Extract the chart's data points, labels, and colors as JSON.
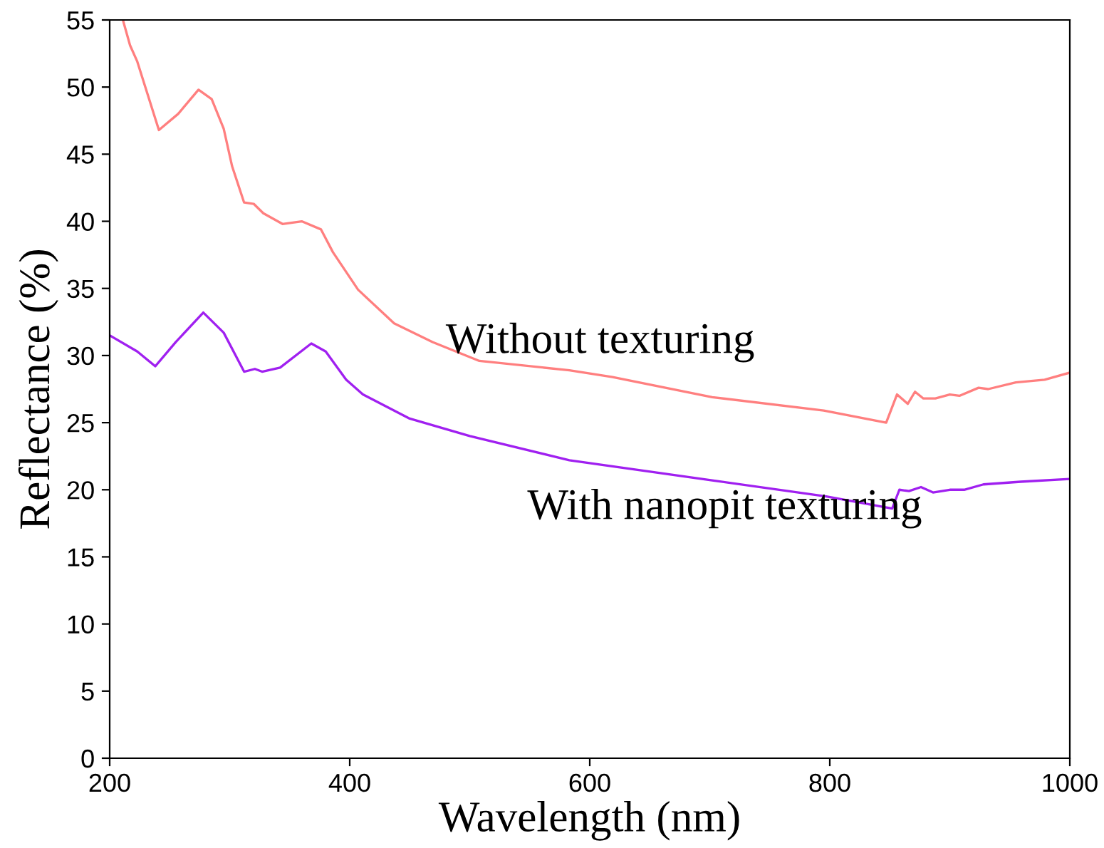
{
  "chart_data": {
    "type": "line",
    "xlabel": "Wavelength (nm)",
    "ylabel": "Reflectance (%)",
    "xlim": [
      200,
      1000
    ],
    "ylim": [
      0,
      55
    ],
    "xticks": [
      200,
      400,
      600,
      800,
      1000
    ],
    "yticks": [
      0,
      5,
      10,
      15,
      20,
      25,
      30,
      35,
      40,
      45,
      50,
      55
    ],
    "grid": false,
    "legend": false,
    "series": [
      {
        "color": "#ff7f7f",
        "x": [
          211,
          217,
          223,
          241,
          257,
          274,
          285,
          295,
          302,
          312,
          320,
          328,
          344,
          360,
          376,
          386,
          407,
          437,
          469,
          508,
          583,
          619,
          702,
          795,
          847,
          856,
          865,
          871,
          878,
          888,
          900,
          908,
          924,
          932,
          955,
          979,
          999
        ],
        "values": [
          55.0,
          53.1,
          51.9,
          46.8,
          48.0,
          49.8,
          49.1,
          46.9,
          44.1,
          41.4,
          41.3,
          40.6,
          39.8,
          40.0,
          39.4,
          37.7,
          34.9,
          32.4,
          31.0,
          29.6,
          28.9,
          28.4,
          26.9,
          25.9,
          25.0,
          27.1,
          26.4,
          27.3,
          26.8,
          26.8,
          27.1,
          27.0,
          27.6,
          27.5,
          28.0,
          28.2,
          28.7
        ]
      },
      {
        "color": "#a020f0",
        "x": [
          200,
          223,
          238,
          255,
          278,
          295,
          312,
          321,
          327,
          342,
          368,
          380,
          397,
          411,
          450,
          500,
          583,
          702,
          797,
          852,
          858,
          866,
          876,
          886,
          900,
          912,
          928,
          959,
          999
        ],
        "values": [
          31.5,
          30.3,
          29.2,
          31.0,
          33.2,
          31.7,
          28.8,
          29.0,
          28.8,
          29.1,
          30.9,
          30.3,
          28.2,
          27.1,
          25.3,
          24.0,
          22.2,
          20.7,
          19.5,
          18.6,
          20.0,
          19.9,
          20.2,
          19.8,
          20.0,
          20.0,
          20.4,
          20.6,
          20.8
        ]
      }
    ],
    "annotations": [
      "Without texturing",
      "With nanopit texturing"
    ]
  }
}
